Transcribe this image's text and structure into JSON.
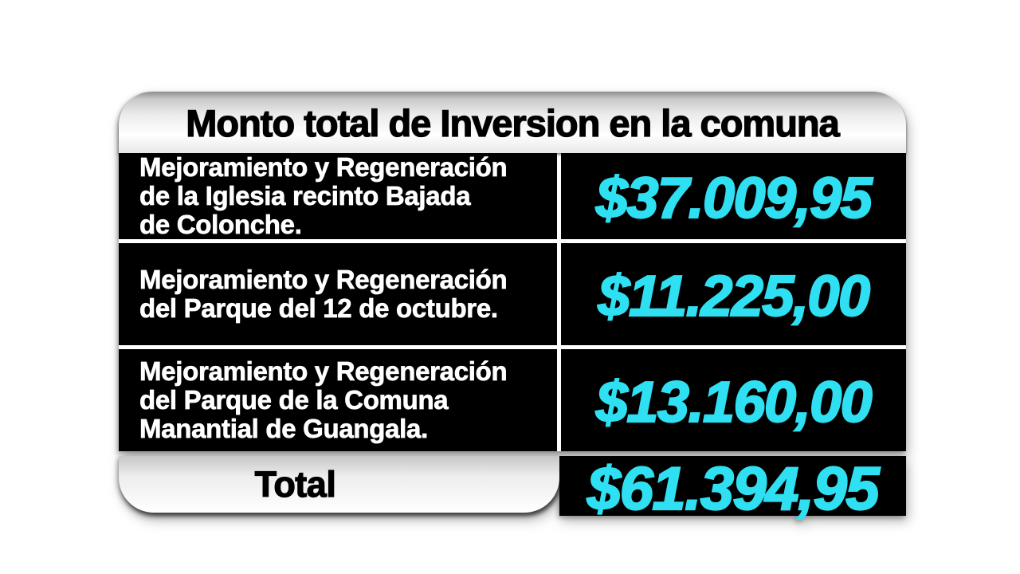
{
  "header": {
    "title": "Monto total de Inversion en la comuna"
  },
  "rows": [
    {
      "label": "Mejoramiento y Regeneración de la Iglesia recinto Bajada de Colonche.",
      "lines": [
        "Mejoramiento y Regeneración",
        "de la Iglesia recinto Bajada",
        "de Colonche."
      ],
      "value": "$37.009,95"
    },
    {
      "label": "Mejoramiento y Regeneración del Parque del 12 de octubre.",
      "lines": [
        "Mejoramiento y Regeneración",
        "del Parque del 12 de octubre."
      ],
      "value": "$11.225,00"
    },
    {
      "label": "Mejoramiento y Regeneración del Parque de la Comuna Manantial de Guangala.",
      "lines": [
        "Mejoramiento y Regeneración",
        "del Parque de la Comuna",
        "Manantial de Guangala."
      ],
      "value": "$13.160,00"
    }
  ],
  "total": {
    "label": "Total",
    "value": "$61.394,95"
  },
  "colors": {
    "accent_cyan": "#2fe0f2",
    "row_background": "#000000",
    "separator": "#ffffff"
  }
}
